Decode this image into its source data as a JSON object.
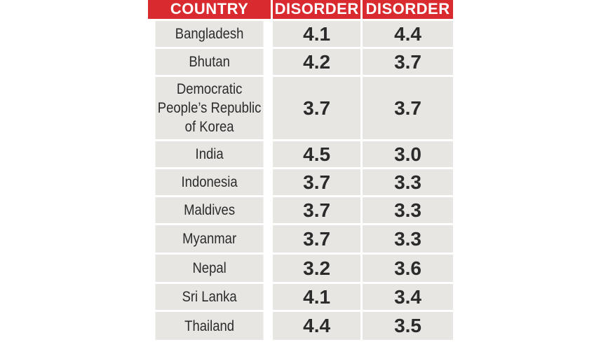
{
  "table": {
    "headers": [
      "COUNTRY",
      "DISORDER",
      "DISORDER"
    ],
    "rows": [
      {
        "country": "Bangladesh",
        "v1": "4.1",
        "v2": "4.4"
      },
      {
        "country": "Bhutan",
        "v1": "4.2",
        "v2": "3.7"
      },
      {
        "country": "Democratic People’s Republic of Korea",
        "v1": "3.7",
        "v2": "3.7"
      },
      {
        "country": "India",
        "v1": "4.5",
        "v2": "3.0"
      },
      {
        "country": "Indonesia",
        "v1": "3.7",
        "v2": "3.3"
      },
      {
        "country": "Maldives",
        "v1": "3.7",
        "v2": "3.3"
      },
      {
        "country": "Myanmar",
        "v1": "3.7",
        "v2": "3.3"
      },
      {
        "country": "Nepal",
        "v1": "3.2",
        "v2": "3.6"
      },
      {
        "country": "Sri Lanka",
        "v1": "4.1",
        "v2": "3.4"
      },
      {
        "country": "Thailand",
        "v1": "4.4",
        "v2": "3.5"
      }
    ]
  },
  "colors": {
    "header_bg": "#d92b2f",
    "cell_bg": "#e7e6e3",
    "text": "#2b2b2b"
  }
}
